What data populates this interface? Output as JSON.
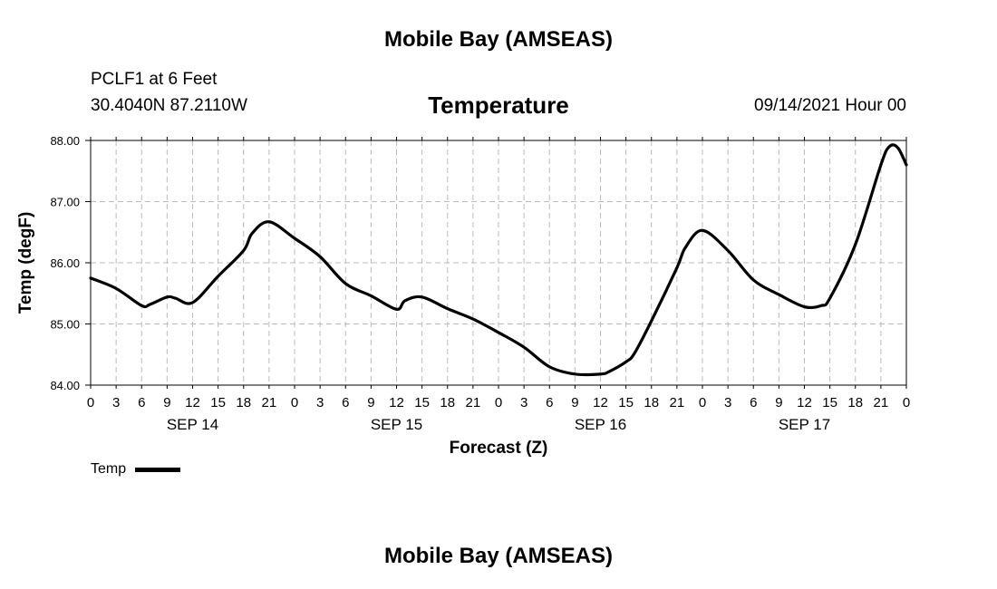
{
  "header": {
    "title": "Mobile Bay (AMSEAS)",
    "station": "PCLF1 at 6 Feet",
    "coords": "30.4040N  87.2110W",
    "parameter": "Temperature",
    "datetime": "09/14/2021 Hour 00"
  },
  "footer": {
    "title": "Mobile Bay (AMSEAS)"
  },
  "chart_data": {
    "type": "line",
    "xlabel": "Forecast (Z)",
    "ylabel": "Temp (degF)",
    "ylim": [
      84.0,
      88.0
    ],
    "xlim": [
      0,
      96
    ],
    "y_ticks": [
      "84.00",
      "85.00",
      "86.00",
      "87.00",
      "88.00"
    ],
    "x_tick_labels": [
      "0",
      "3",
      "6",
      "9",
      "12",
      "15",
      "18",
      "21",
      "0",
      "3",
      "6",
      "9",
      "12",
      "15",
      "18",
      "21",
      "0",
      "3",
      "6",
      "9",
      "12",
      "15",
      "18",
      "21",
      "0",
      "3",
      "6",
      "9",
      "12",
      "15",
      "18",
      "21",
      "0"
    ],
    "day_labels": [
      {
        "label": "SEP 14",
        "hour": 12
      },
      {
        "label": "SEP 15",
        "hour": 36
      },
      {
        "label": "SEP 16",
        "hour": 60
      },
      {
        "label": "SEP 17",
        "hour": 84
      }
    ],
    "grid": true,
    "legend": {
      "position": "bottom-left",
      "entries": [
        "Temp"
      ]
    },
    "series": [
      {
        "name": "Temp",
        "color": "#000000",
        "x": [
          0,
          3,
          6,
          7,
          9,
          10,
          12,
          15,
          18,
          19,
          21,
          24,
          27,
          30,
          33,
          36,
          37,
          39,
          42,
          45,
          48,
          51,
          54,
          57,
          60,
          61,
          63,
          64,
          66,
          69,
          70,
          72,
          75,
          78,
          81,
          84,
          86,
          87,
          90,
          93,
          94,
          95,
          96
        ],
        "y": [
          85.75,
          85.58,
          85.3,
          85.32,
          85.44,
          85.42,
          85.35,
          85.78,
          86.2,
          86.48,
          86.67,
          86.4,
          86.1,
          85.66,
          85.46,
          85.24,
          85.38,
          85.44,
          85.25,
          85.08,
          84.86,
          84.62,
          84.3,
          84.18,
          84.18,
          84.22,
          84.38,
          84.52,
          85.05,
          85.92,
          86.25,
          86.53,
          86.2,
          85.72,
          85.48,
          85.28,
          85.3,
          85.42,
          86.3,
          87.6,
          87.9,
          87.88,
          87.6
        ]
      }
    ]
  }
}
